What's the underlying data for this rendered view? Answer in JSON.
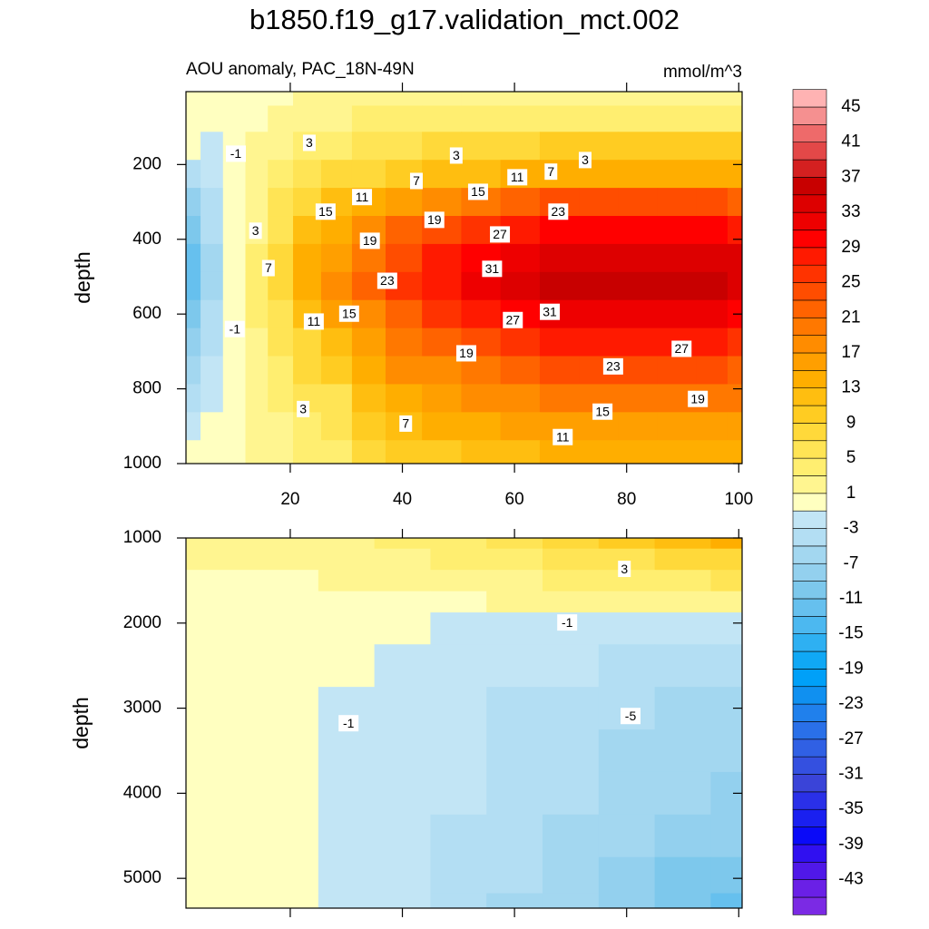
{
  "chart_data": [
    {
      "type": "contour",
      "title": "b1850.f19_g17.validation_mct.002",
      "subtitle": "AOU anomaly, PAC_18N-49N",
      "units": "mmol/m^3",
      "y_label": "depth",
      "xlim": [
        1.4,
        100.6
      ],
      "xticks": [
        20,
        40,
        60,
        80,
        100
      ],
      "x_tick_labels": true,
      "ylim": [
        1000,
        5
      ],
      "yticks": [
        200,
        400,
        600,
        800,
        1000
      ],
      "x": [
        2,
        6,
        10,
        14,
        18,
        23,
        28,
        34,
        40,
        47,
        54,
        61,
        68,
        75,
        82,
        89,
        96,
        100
      ],
      "y": [
        10,
        75,
        150,
        225,
        300,
        375,
        450,
        525,
        600,
        675,
        750,
        825,
        900,
        975
      ],
      "z": [
        [
          0,
          0,
          0,
          0,
          0,
          1,
          1,
          1,
          1,
          1,
          2,
          2,
          2,
          2,
          2,
          2,
          2,
          2
        ],
        [
          0,
          0,
          0,
          0,
          1,
          2,
          2,
          3,
          3,
          3,
          4,
          4,
          4,
          4,
          4,
          4,
          4,
          4
        ],
        [
          -1,
          -2,
          0,
          1,
          2,
          3,
          4,
          5,
          6,
          7,
          8,
          8,
          9,
          9,
          9,
          9,
          9,
          9
        ],
        [
          -5,
          -2,
          0,
          1,
          3,
          5,
          7,
          8,
          10,
          11,
          12,
          13,
          14,
          14,
          14,
          14,
          14,
          14
        ],
        [
          -8,
          -4,
          -1,
          2,
          5,
          8,
          11,
          14,
          16,
          18,
          20,
          21,
          23,
          23,
          23,
          23,
          23,
          22
        ],
        [
          -11,
          -5,
          -1,
          2,
          6,
          11,
          14,
          17,
          21,
          23,
          25,
          27,
          29,
          29,
          29,
          29,
          29,
          28
        ],
        [
          -13,
          -6,
          -1,
          3,
          7,
          13,
          16,
          20,
          24,
          27,
          30,
          32,
          34,
          34,
          34,
          34,
          34,
          33
        ],
        [
          -13,
          -6,
          -1,
          3,
          7,
          13,
          17,
          21,
          25,
          28,
          31,
          33,
          35,
          35,
          35,
          35,
          35,
          34
        ],
        [
          -11,
          -5,
          -1,
          3,
          6,
          11,
          15,
          18,
          22,
          25,
          27,
          29,
          31,
          31,
          31,
          31,
          31,
          30
        ],
        [
          -8,
          -4,
          -1,
          2,
          5,
          8,
          11,
          16,
          19,
          21,
          24,
          25,
          27,
          27,
          27,
          27,
          27,
          26
        ],
        [
          -7,
          -3,
          0,
          2,
          4,
          7,
          9,
          14,
          17,
          18,
          20,
          22,
          23,
          23,
          23,
          23,
          23,
          22
        ],
        [
          -5,
          -2,
          0,
          1,
          3,
          5,
          6,
          12,
          14,
          16,
          17,
          18,
          20,
          20,
          20,
          20,
          20,
          19
        ],
        [
          -2,
          -1,
          0,
          1,
          2,
          4,
          5,
          9,
          11,
          13,
          14,
          15,
          16,
          16,
          16,
          16,
          16,
          15
        ],
        [
          0,
          0,
          0,
          1,
          1,
          3,
          3,
          8,
          9,
          10,
          11,
          12,
          13,
          13,
          13,
          13,
          13,
          13
        ]
      ],
      "contour_labels": [
        {
          "value": -1,
          "x": 10.3,
          "y": 171
        },
        {
          "value": 3,
          "x": 23.4,
          "y": 142
        },
        {
          "value": 3,
          "x": 49.6,
          "y": 176
        },
        {
          "value": 11,
          "x": 60.5,
          "y": 234
        },
        {
          "value": 7,
          "x": 66.5,
          "y": 219
        },
        {
          "value": 3,
          "x": 72.6,
          "y": 188
        },
        {
          "value": 7,
          "x": 42.5,
          "y": 244
        },
        {
          "value": 15,
          "x": 53.5,
          "y": 273
        },
        {
          "value": 11,
          "x": 32.8,
          "y": 287
        },
        {
          "value": 23,
          "x": 67.8,
          "y": 326
        },
        {
          "value": 15,
          "x": 26.3,
          "y": 326
        },
        {
          "value": 19,
          "x": 45.7,
          "y": 348
        },
        {
          "value": 3,
          "x": 13.8,
          "y": 377
        },
        {
          "value": 27,
          "x": 57.4,
          "y": 387
        },
        {
          "value": 19,
          "x": 34.2,
          "y": 404
        },
        {
          "value": 7,
          "x": 16.1,
          "y": 477
        },
        {
          "value": 31,
          "x": 56,
          "y": 479
        },
        {
          "value": 23,
          "x": 37.3,
          "y": 511
        },
        {
          "value": 15,
          "x": 30.5,
          "y": 599
        },
        {
          "value": 31,
          "x": 66.3,
          "y": 594
        },
        {
          "value": 11,
          "x": 24.2,
          "y": 620
        },
        {
          "value": -1,
          "x": 10.1,
          "y": 640
        },
        {
          "value": 27,
          "x": 59.7,
          "y": 616
        },
        {
          "value": 19,
          "x": 51.4,
          "y": 705
        },
        {
          "value": 27,
          "x": 89.8,
          "y": 693
        },
        {
          "value": 23,
          "x": 77.6,
          "y": 740
        },
        {
          "value": 19,
          "x": 92.7,
          "y": 827
        },
        {
          "value": 3,
          "x": 22.3,
          "y": 854
        },
        {
          "value": 15,
          "x": 75.7,
          "y": 861
        },
        {
          "value": 7,
          "x": 40.6,
          "y": 893
        },
        {
          "value": 11,
          "x": 68.6,
          "y": 929
        }
      ]
    },
    {
      "type": "contour",
      "y_label": "depth",
      "xlim": [
        1.4,
        100.6
      ],
      "xticks": [
        20,
        40,
        60,
        80,
        100
      ],
      "x_tick_labels": false,
      "ylim": [
        5350,
        1000
      ],
      "yticks": [
        1000,
        2000,
        3000,
        4000,
        5000
      ],
      "x": [
        2,
        10,
        20,
        30,
        40,
        50,
        60,
        70,
        80,
        90,
        100
      ],
      "y": [
        1000,
        1250,
        1500,
        1750,
        2000,
        2500,
        3000,
        3500,
        4000,
        4500,
        5000,
        5350
      ],
      "z": [
        [
          1,
          1,
          1,
          2,
          3,
          4,
          6,
          8,
          10,
          12,
          13
        ],
        [
          1,
          1,
          1,
          1,
          2,
          3,
          4,
          5,
          6,
          7,
          8
        ],
        [
          0,
          0,
          0,
          1,
          1,
          2,
          2,
          3,
          3,
          4,
          5
        ],
        [
          0,
          0,
          0,
          0,
          0,
          0,
          1,
          1,
          1,
          1,
          1
        ],
        [
          0,
          0,
          0,
          0,
          0,
          -1.5,
          -1.5,
          -1.5,
          -2,
          -2,
          -2
        ],
        [
          0,
          0,
          0,
          0,
          -1.5,
          -2,
          -2.5,
          -3,
          -3.5,
          -4,
          -4.5
        ],
        [
          0,
          0,
          0,
          -1.2,
          -2,
          -2.5,
          -3.5,
          -4,
          -5,
          -5.5,
          -6
        ],
        [
          0,
          0,
          0,
          -1.5,
          -2,
          -3,
          -3.5,
          -4.5,
          -5.5,
          -6.5,
          -7
        ],
        [
          0,
          0,
          0,
          -1.5,
          -2.5,
          -3,
          -4,
          -5,
          -6,
          -7,
          -8
        ],
        [
          0,
          0,
          0,
          -1.5,
          -2.5,
          -3.5,
          -4.5,
          -5.5,
          -7,
          -8,
          -9
        ],
        [
          0,
          0,
          0,
          -1.5,
          -3,
          -4,
          -5,
          -6.5,
          -8,
          -9.5,
          -11
        ],
        [
          0,
          0,
          0,
          -2,
          -3,
          -4.5,
          -5.5,
          -7,
          -8.5,
          -10,
          -12
        ]
      ],
      "contour_labels": [
        {
          "value": 3,
          "x": 79.6,
          "y": 1363
        },
        {
          "value": -1,
          "x": 69.4,
          "y": 1993
        },
        {
          "value": -5,
          "x": 80.7,
          "y": 3092
        },
        {
          "value": -1,
          "x": 30.4,
          "y": 3177
        }
      ]
    }
  ],
  "colorbar": {
    "levels": [
      -45,
      -43,
      -41,
      -39,
      -37,
      -35,
      -33,
      -31,
      -29,
      -27,
      -25,
      -23,
      -21,
      -19,
      -17,
      -15,
      -13,
      -11,
      -9,
      -7,
      -5,
      -3,
      -1,
      1,
      3,
      5,
      7,
      9,
      11,
      13,
      15,
      17,
      19,
      21,
      23,
      25,
      27,
      29,
      31,
      33,
      35,
      37,
      39,
      41,
      43,
      45
    ],
    "colors": [
      "#7b2ae4",
      "#6a20e6",
      "#5018e8",
      "#3010f0",
      "#0a0af8",
      "#1a20f0",
      "#2a30e8",
      "#3a44d8",
      "#3450e0",
      "#3060e4",
      "#2a70e8",
      "#2080ec",
      "#1090f0",
      "#00a0f8",
      "#10a8f5",
      "#2eb0f2",
      "#4cb8f0",
      "#66c0ee",
      "#7dc8ec",
      "#93d0ee",
      "#a3d7f0",
      "#b3def3",
      "#c2e5f5",
      "#ffffc0",
      "#fff590",
      "#ffee70",
      "#ffe455",
      "#ffd93a",
      "#ffcc22",
      "#ffbe10",
      "#ffae00",
      "#ff9f00",
      "#ff8c00",
      "#ff7800",
      "#ff6300",
      "#ff4d00",
      "#ff3300",
      "#ff1a00",
      "#ff0000",
      "#ee0000",
      "#dd0000",
      "#c80000",
      "#d42020",
      "#e34848",
      "#ee6a6a",
      "#f59090",
      "#ffb3b3"
    ],
    "ticks": [
      45,
      41,
      37,
      33,
      29,
      25,
      21,
      17,
      13,
      9,
      5,
      1,
      -3,
      -7,
      -11,
      -15,
      -19,
      -23,
      -27,
      -31,
      -35,
      -39,
      -43
    ]
  }
}
